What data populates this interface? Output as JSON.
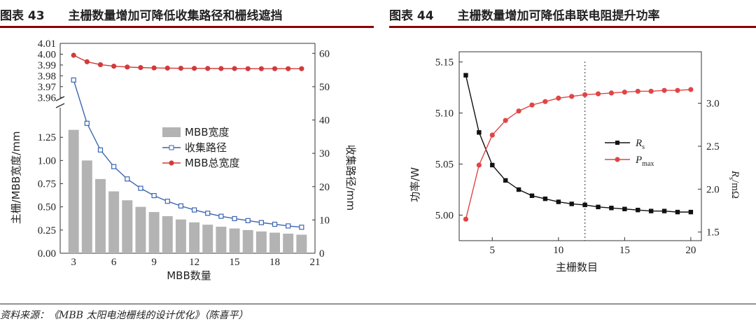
{
  "left_panel": {
    "label": "图表 43",
    "heading": "主栅数量增加可降低收集路径和栅线遮挡"
  },
  "right_panel": {
    "label": "图表 44",
    "heading": "主栅数量增加可降低串联电阻提升功率"
  },
  "source": "资料来源：《MBB 太阳电池栅线的设计优化》（陈喜平）",
  "chart_data": [
    {
      "type": "bar",
      "xlabel": "MBB数量",
      "ylabel": "主栅/MBB宽度/mm",
      "y2label": "收集路径/mm",
      "x_ticks": [
        "3",
        "6",
        "9",
        "12",
        "15",
        "18",
        "21"
      ],
      "y_lower_ticks": [
        "0.00",
        "0.25",
        "0.50",
        "0.75",
        "1.00",
        "1.25"
      ],
      "y_upper_ticks": [
        "3.96",
        "3.97",
        "3.98",
        "3.99",
        "4.00",
        "4.01"
      ],
      "y2_ticks": [
        "0",
        "10",
        "20",
        "30",
        "40",
        "50",
        "60"
      ],
      "xlim": [
        2,
        21
      ],
      "ylim_lower": [
        0,
        1.38
      ],
      "ylim_upper": [
        3.955,
        4.01
      ],
      "y2lim": [
        0,
        63
      ],
      "legend_position": "center",
      "categories": [
        3,
        4,
        5,
        6,
        7,
        8,
        9,
        10,
        11,
        12,
        13,
        14,
        15,
        16,
        17,
        18,
        19,
        20
      ],
      "series": [
        {
          "name": "MBB宽度",
          "kind": "bar",
          "axis": "left",
          "values": [
            1.33,
            1.0,
            0.8,
            0.667,
            0.571,
            0.5,
            0.444,
            0.4,
            0.364,
            0.333,
            0.308,
            0.286,
            0.267,
            0.25,
            0.235,
            0.222,
            0.211,
            0.2
          ],
          "color": "#b3b3b3"
        },
        {
          "name": "收集路径",
          "kind": "line",
          "axis": "right",
          "marker": "square-open",
          "values": [
            52,
            39,
            31,
            26,
            22.3,
            19.5,
            17.3,
            15.6,
            14.2,
            13.0,
            12.0,
            11.1,
            10.4,
            9.8,
            9.2,
            8.7,
            8.2,
            7.8
          ],
          "color": "#3a64b0"
        },
        {
          "name": "MBB总宽度",
          "kind": "line",
          "axis": "left-upper",
          "marker": "circle-filled",
          "values": [
            3.999,
            3.993,
            3.9903,
            3.9889,
            3.9881,
            3.9876,
            3.9873,
            3.9871,
            3.987,
            3.9869,
            3.9868,
            3.9867,
            3.9867,
            3.9866,
            3.9866,
            3.9866,
            3.9866,
            3.9866
          ],
          "color": "#d23a3a"
        }
      ]
    },
    {
      "type": "line",
      "xlabel": "主栅数目",
      "ylabel": "功率/W",
      "y2label_main": "R",
      "y2label_sub": "s",
      "y2label_unit": "/mΩ",
      "x_ticks": [
        "5",
        "10",
        "15",
        "20"
      ],
      "y_ticks": [
        "5.00",
        "5.05",
        "5.10",
        "5.15"
      ],
      "y2_ticks": [
        "1.5",
        "2.0",
        "2.5",
        "3.0"
      ],
      "xlim": [
        2.5,
        20.8
      ],
      "ylim": [
        4.975,
        5.16
      ],
      "y2lim": [
        1.4,
        3.6
      ],
      "vline_x": 12,
      "legend_position": "center-left",
      "x": [
        3,
        4,
        5,
        6,
        7,
        8,
        9,
        10,
        11,
        12,
        13,
        14,
        15,
        16,
        17,
        18,
        19,
        20
      ],
      "series": [
        {
          "name": "R",
          "sub": "s",
          "kind": "line",
          "axis": "left",
          "marker": "square-filled",
          "values": [
            5.137,
            5.081,
            5.049,
            5.034,
            5.025,
            5.019,
            5.016,
            5.013,
            5.011,
            5.01,
            5.008,
            5.007,
            5.006,
            5.005,
            5.004,
            5.004,
            5.003,
            5.003
          ],
          "color": "#111111"
        },
        {
          "name": "P",
          "sub": "max",
          "kind": "line",
          "axis": "right",
          "marker": "circle-filled",
          "values": [
            1.65,
            2.28,
            2.63,
            2.8,
            2.91,
            2.98,
            3.02,
            3.06,
            3.08,
            3.1,
            3.11,
            3.12,
            3.13,
            3.14,
            3.14,
            3.15,
            3.15,
            3.16
          ],
          "color": "#e04545"
        }
      ]
    }
  ]
}
